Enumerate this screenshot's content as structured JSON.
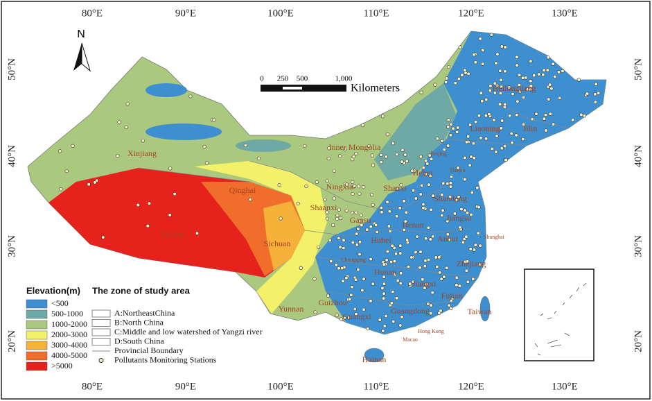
{
  "map": {
    "lon_labels": [
      "80°E",
      "90°E",
      "100°E",
      "110°E",
      "120°E",
      "130°E"
    ],
    "lat_labels": [
      "50°N",
      "40°N",
      "30°N",
      "20°N"
    ],
    "north": "N",
    "scale_bar": {
      "ticks": [
        "0",
        "250",
        "500",
        "1,000"
      ],
      "unit": "Kilometers"
    },
    "provinces": [
      "Xinjiang",
      "Qinghai",
      "Xizang",
      "Sichuan",
      "Yunnan",
      "Guizhou",
      "Guangxi",
      "Guangdong",
      "Hainan",
      "Inner Mongolia",
      "Ningxia",
      "Shaanxi",
      "Gansu",
      "Shanxi",
      "Hebei",
      "Beijing",
      "Tianjin",
      "Liaoning",
      "Jilin",
      "Heilongjiang",
      "Shandong",
      "Jiangsu",
      "Henan",
      "Hubei",
      "Anhui",
      "Shanghai",
      "Chongqing",
      "Hunan",
      "Jiangxi",
      "Zhejiang",
      "Fujian",
      "Taiwan",
      "Hong Kong",
      "Macao"
    ],
    "elevation_legend": {
      "title": "Elevation(m)",
      "classes": [
        {
          "label": "<500",
          "color": "#3d8fd0"
        },
        {
          "label": "500-1000",
          "color": "#6fa9a6"
        },
        {
          "label": "1000-2000",
          "color": "#aac97f"
        },
        {
          "label": "2000-3000",
          "color": "#f3f06a"
        },
        {
          "label": "3000-4000",
          "color": "#f6b13b"
        },
        {
          "label": "4000-5000",
          "color": "#f06d2b"
        },
        {
          "label": ">5000",
          "color": "#e6221c"
        }
      ]
    },
    "zone_legend": {
      "title": "The zone of study area",
      "items": [
        "A:NortheastChina",
        "B:North China",
        "C:Middle and low watershed of Yangzi river",
        "D:South China",
        "Provincial Boundary",
        "Pollutants Monitoring Stations"
      ]
    }
  }
}
